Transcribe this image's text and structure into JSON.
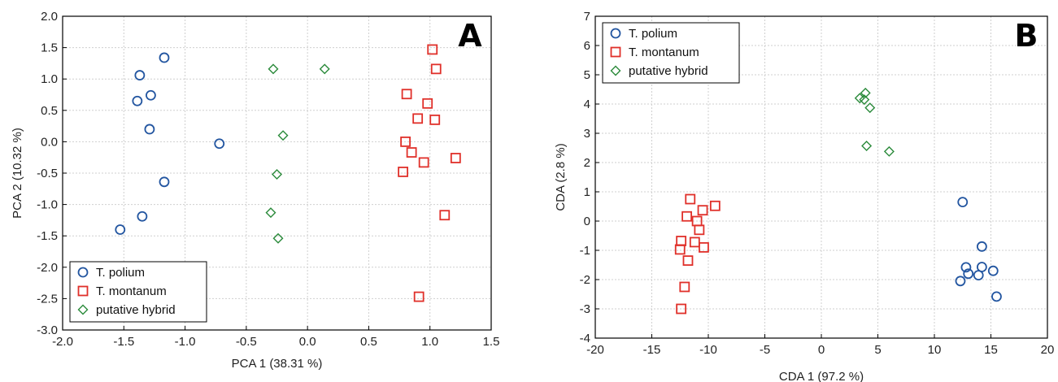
{
  "chart_data": [
    {
      "type": "scatter",
      "panel_label": "A",
      "xlabel": "PCA 1 (38.31 %)",
      "ylabel": "PCA 2 (10.32 %)",
      "xlim": [
        -2.0,
        1.5
      ],
      "ylim": [
        -3.0,
        2.0
      ],
      "xticks": [
        "-2.0",
        "-1.5",
        "-1.0",
        "-0.5",
        "0.0",
        "0.5",
        "1.0",
        "1.5"
      ],
      "yticks": [
        "-3.0",
        "-2.5",
        "-2.0",
        "-1.5",
        "-1.0",
        "-0.5",
        "0.0",
        "0.5",
        "1.0",
        "1.5",
        "2.0"
      ],
      "grid": true,
      "legend_position": "bottom-left",
      "series": [
        {
          "name": "T. polium",
          "marker": "circle",
          "color": "#2255a0",
          "points": [
            [
              -1.17,
              1.34
            ],
            [
              -1.37,
              1.06
            ],
            [
              -1.28,
              0.74
            ],
            [
              -1.39,
              0.65
            ],
            [
              -1.29,
              0.2
            ],
            [
              -0.72,
              -0.03
            ],
            [
              -1.17,
              -0.64
            ],
            [
              -1.35,
              -1.19
            ],
            [
              -1.53,
              -1.4
            ]
          ]
        },
        {
          "name": "T. montanum",
          "marker": "square",
          "color": "#e0302a",
          "points": [
            [
              1.02,
              1.47
            ],
            [
              1.05,
              1.16
            ],
            [
              0.81,
              0.76
            ],
            [
              0.98,
              0.61
            ],
            [
              0.9,
              0.37
            ],
            [
              1.04,
              0.35
            ],
            [
              0.8,
              0.0
            ],
            [
              0.85,
              -0.17
            ],
            [
              0.95,
              -0.33
            ],
            [
              0.78,
              -0.48
            ],
            [
              1.21,
              -0.26
            ],
            [
              1.12,
              -1.17
            ],
            [
              0.91,
              -2.47
            ]
          ]
        },
        {
          "name": "putative hybrid",
          "marker": "diamond",
          "color": "#2a8a3a",
          "points": [
            [
              -0.28,
              1.16
            ],
            [
              0.14,
              1.16
            ],
            [
              -0.2,
              0.1
            ],
            [
              -0.25,
              -0.52
            ],
            [
              -0.3,
              -1.13
            ],
            [
              -0.24,
              -1.54
            ]
          ]
        }
      ]
    },
    {
      "type": "scatter",
      "panel_label": "B",
      "xlabel": "CDA 1 (97.2 %)",
      "ylabel": "CDA  (2.8 %)",
      "xlim": [
        -20,
        20
      ],
      "ylim": [
        -4,
        7
      ],
      "xticks": [
        "-20",
        "-15",
        "-10",
        "-5",
        "0",
        "5",
        "10",
        "15",
        "20"
      ],
      "yticks": [
        "-4",
        "-3",
        "-2",
        "-1",
        "0",
        "1",
        "2",
        "3",
        "4",
        "5",
        "6",
        "7"
      ],
      "grid": true,
      "legend_position": "top-left",
      "series": [
        {
          "name": "T. polium",
          "marker": "circle",
          "color": "#2255a0",
          "points": [
            [
              12.5,
              0.65
            ],
            [
              14.2,
              -0.87
            ],
            [
              12.8,
              -1.58
            ],
            [
              14.2,
              -1.57
            ],
            [
              15.2,
              -1.7
            ],
            [
              13.0,
              -1.8
            ],
            [
              13.9,
              -1.85
            ],
            [
              12.3,
              -2.05
            ],
            [
              15.5,
              -2.58
            ]
          ]
        },
        {
          "name": "T. montanum",
          "marker": "square",
          "color": "#e0302a",
          "points": [
            [
              -11.6,
              0.75
            ],
            [
              -9.4,
              0.52
            ],
            [
              -10.5,
              0.37
            ],
            [
              -11.9,
              0.16
            ],
            [
              -11.0,
              0.0
            ],
            [
              -10.8,
              -0.3
            ],
            [
              -12.4,
              -0.68
            ],
            [
              -11.2,
              -0.72
            ],
            [
              -10.4,
              -0.9
            ],
            [
              -12.5,
              -0.97
            ],
            [
              -11.8,
              -1.35
            ],
            [
              -12.1,
              -2.25
            ],
            [
              -12.4,
              -3.0
            ]
          ]
        },
        {
          "name": "putative hybrid",
          "marker": "diamond",
          "color": "#2a8a3a",
          "points": [
            [
              3.9,
              4.38
            ],
            [
              3.4,
              4.2
            ],
            [
              3.8,
              4.15
            ],
            [
              4.3,
              3.87
            ],
            [
              4.0,
              2.57
            ],
            [
              6.0,
              2.38
            ]
          ]
        }
      ]
    }
  ]
}
